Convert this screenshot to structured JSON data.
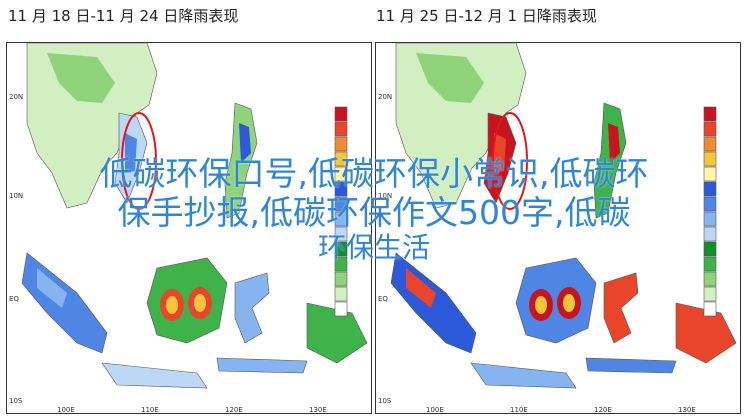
{
  "panels": [
    {
      "title": "11 月 18 日-11 月 24 日降雨表现",
      "lat_labels": [
        "20N",
        "10N",
        "EQ",
        "10S"
      ],
      "lon_labels": [
        "100E",
        "110E",
        "120E",
        "130E"
      ]
    },
    {
      "title": "11 月 25 日-12 月 1 日降雨表现",
      "lat_labels": [
        "20N",
        "10N",
        "EQ",
        "10S"
      ],
      "lon_labels": [
        "100E",
        "110E",
        "120E",
        "130E"
      ]
    }
  ],
  "legend_colors": [
    "#c8141e",
    "#e8452a",
    "#f08c30",
    "#f5c63a",
    "#fff8a8",
    "#2b59d9",
    "#4f86e6",
    "#85b4f0",
    "#bcd8f5",
    "#11902a",
    "#3db34a",
    "#8fd47a",
    "#d2efc2",
    "#ffffff"
  ],
  "overlay": {
    "line1": "低碳环保口号,低碳环保小常识,低碳环",
    "line2": "保手抄报,低碳环保作文500字,低碳",
    "line3": "环保生活"
  }
}
